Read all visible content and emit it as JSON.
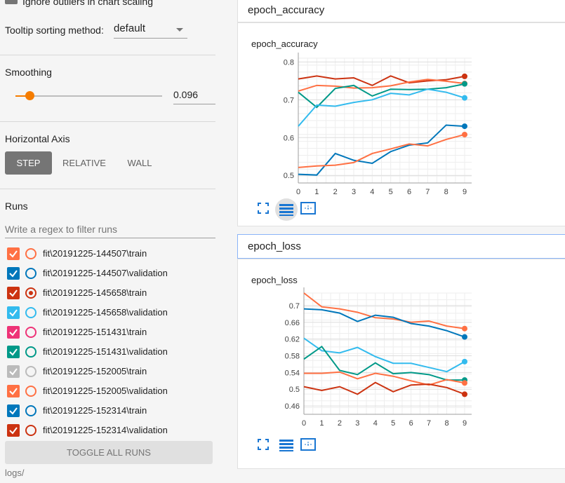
{
  "sidebar": {
    "top_option_label": "Ignore outliers in chart scaling",
    "tooltip_label": "Tooltip sorting method:",
    "tooltip_value": "default",
    "smoothing_title": "Smoothing",
    "smoothing_value": "0.096",
    "smoothing_fraction": 0.096,
    "horizontal_axis_title": "Horizontal Axis",
    "axis_buttons": [
      "STEP",
      "RELATIVE",
      "WALL"
    ],
    "runs_title": "Runs",
    "filter_placeholder": "Write a regex to filter runs",
    "runs": [
      {
        "label": "fit\\20191225-144507\\train",
        "color": "#ff7043",
        "checked": true,
        "selected": false
      },
      {
        "label": "fit\\20191225-144507\\validation",
        "color": "#0077bb",
        "checked": true,
        "selected": false
      },
      {
        "label": "fit\\20191225-145658\\train",
        "color": "#cc3311",
        "checked": true,
        "selected": true
      },
      {
        "label": "fit\\20191225-145658\\validation",
        "color": "#33bbee",
        "checked": true,
        "selected": false
      },
      {
        "label": "fit\\20191225-151431\\train",
        "color": "#ee3377",
        "checked": true,
        "selected": false
      },
      {
        "label": "fit\\20191225-151431\\validation",
        "color": "#009988",
        "checked": true,
        "selected": false
      },
      {
        "label": "fit\\20191225-152005\\train",
        "color": "#bbbbbb",
        "checked": true,
        "selected": false
      },
      {
        "label": "fit\\20191225-152005\\validation",
        "color": "#ff7043",
        "checked": true,
        "selected": false
      },
      {
        "label": "fit\\20191225-152314\\train",
        "color": "#0077bb",
        "checked": true,
        "selected": false
      },
      {
        "label": "fit\\20191225-152314\\validation",
        "color": "#cc3311",
        "checked": true,
        "selected": false
      }
    ],
    "toggle_label": "TOGGLE ALL RUNS",
    "logdir": "logs/"
  },
  "groups": [
    {
      "header": "epoch_accuracy"
    },
    {
      "header": "epoch_loss"
    }
  ],
  "chart_data": [
    {
      "type": "line",
      "title": "epoch_accuracy",
      "x": [
        0,
        1,
        2,
        3,
        4,
        5,
        6,
        7,
        8,
        9
      ],
      "xticks": [
        "0",
        "1",
        "2",
        "3",
        "4",
        "5",
        "6",
        "7",
        "8",
        "9"
      ],
      "yticks": [
        "0.5",
        "0.6",
        "0.7",
        "0.8"
      ],
      "ytick_values": [
        0.5,
        0.6,
        0.7,
        0.8
      ],
      "ylim": [
        0.48,
        0.81
      ],
      "grid": true,
      "series": [
        {
          "color": "#cc3311",
          "values": [
            0.755,
            0.763,
            0.755,
            0.758,
            0.738,
            0.763,
            0.745,
            0.75,
            0.753,
            0.762
          ]
        },
        {
          "color": "#ff7043",
          "values": [
            0.723,
            0.738,
            0.736,
            0.731,
            0.732,
            0.737,
            0.747,
            0.754,
            0.749,
            0.743
          ]
        },
        {
          "color": "#009988",
          "values": [
            0.72,
            0.68,
            0.73,
            0.738,
            0.71,
            0.728,
            0.727,
            0.728,
            0.732,
            0.742
          ]
        },
        {
          "color": "#33bbee",
          "values": [
            0.63,
            0.686,
            0.683,
            0.693,
            0.7,
            0.717,
            0.713,
            0.728,
            0.72,
            0.705
          ]
        },
        {
          "color": "#0077bb",
          "values": [
            0.503,
            0.501,
            0.558,
            0.54,
            0.532,
            0.563,
            0.58,
            0.586,
            0.633,
            0.63
          ]
        },
        {
          "color": "#ff7043",
          "values": [
            0.521,
            0.525,
            0.527,
            0.534,
            0.558,
            0.57,
            0.583,
            0.578,
            0.595,
            0.608
          ]
        }
      ]
    },
    {
      "type": "line",
      "title": "epoch_loss",
      "x": [
        0,
        1,
        2,
        3,
        4,
        5,
        6,
        7,
        8,
        9
      ],
      "xticks": [
        "0",
        "1",
        "2",
        "3",
        "4",
        "5",
        "6",
        "7",
        "8",
        "9"
      ],
      "yticks": [
        "0.46",
        "0.5",
        "0.54",
        "0.58",
        "0.62",
        "0.66",
        "0.7"
      ],
      "ytick_values": [
        0.46,
        0.5,
        0.54,
        0.58,
        0.62,
        0.66,
        0.7
      ],
      "ylim": [
        0.44,
        0.73
      ],
      "grid": true,
      "series": [
        {
          "color": "#ff7043",
          "values": [
            0.73,
            0.697,
            0.692,
            0.684,
            0.671,
            0.668,
            0.66,
            0.663,
            0.651,
            0.645
          ]
        },
        {
          "color": "#0077bb",
          "values": [
            0.692,
            0.69,
            0.682,
            0.662,
            0.677,
            0.672,
            0.657,
            0.651,
            0.64,
            0.625
          ]
        },
        {
          "color": "#33bbee",
          "values": [
            0.622,
            0.592,
            0.587,
            0.6,
            0.578,
            0.562,
            0.562,
            0.552,
            0.542,
            0.566
          ]
        },
        {
          "color": "#009988",
          "values": [
            0.572,
            0.602,
            0.545,
            0.535,
            0.563,
            0.537,
            0.54,
            0.535,
            0.522,
            0.522
          ]
        },
        {
          "color": "#ff7043",
          "values": [
            0.538,
            0.538,
            0.541,
            0.525,
            0.538,
            0.531,
            0.52,
            0.51,
            0.523,
            0.515
          ]
        },
        {
          "color": "#cc3311",
          "values": [
            0.506,
            0.497,
            0.506,
            0.488,
            0.516,
            0.494,
            0.51,
            0.512,
            0.504,
            0.488
          ]
        }
      ]
    }
  ]
}
